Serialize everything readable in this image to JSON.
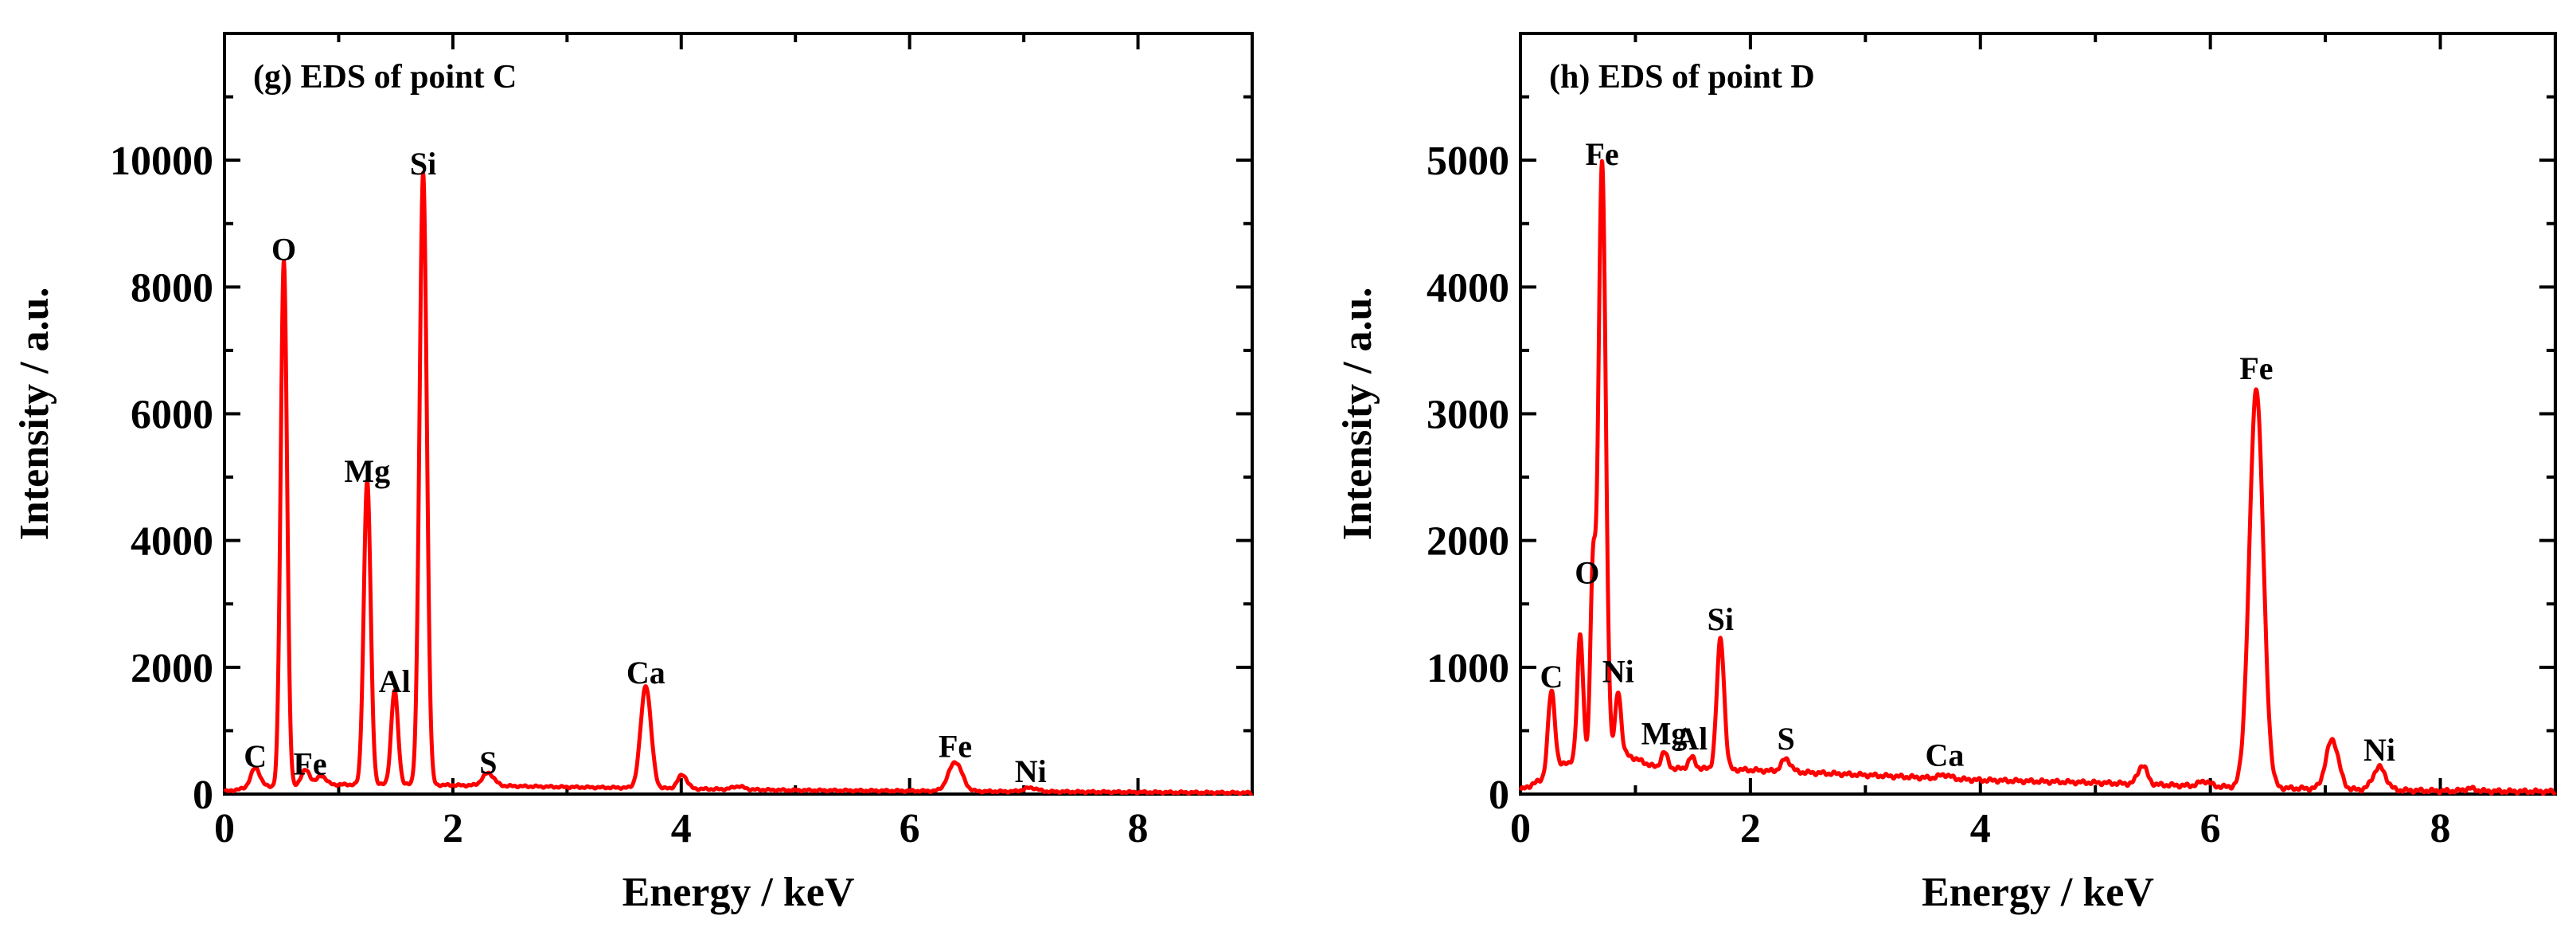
{
  "chart_data": [
    {
      "type": "line",
      "title": "(g) EDS of point C",
      "xlabel": "Energy / keV",
      "ylabel": "Intensity / a.u.",
      "xlim": [
        0,
        9
      ],
      "ylim": [
        0,
        12000
      ],
      "x_ticks": [
        0,
        2,
        4,
        6,
        8
      ],
      "y_ticks": [
        0,
        2000,
        4000,
        6000,
        8000,
        10000
      ],
      "line_color": "#ff0000",
      "grid": false,
      "series": [
        {
          "baseline": [
            [
              0,
              40
            ],
            [
              0.3,
              120
            ],
            [
              0.6,
              120
            ],
            [
              1.0,
              150
            ],
            [
              1.6,
              150
            ],
            [
              2.0,
              140
            ],
            [
              2.4,
              130
            ],
            [
              3.0,
              110
            ],
            [
              3.5,
              100
            ],
            [
              4.2,
              80
            ],
            [
              5.0,
              60
            ],
            [
              6.0,
              50
            ],
            [
              7.0,
              40
            ],
            [
              8.0,
              30
            ],
            [
              9.0,
              20
            ]
          ],
          "peaks": [
            {
              "x": 0.27,
              "y": 300,
              "w": 0.04
            },
            {
              "x": 0.52,
              "y": 8300,
              "w": 0.028
            },
            {
              "x": 0.71,
              "y": 250,
              "w": 0.04
            },
            {
              "x": 0.85,
              "y": 150,
              "w": 0.04
            },
            {
              "x": 1.25,
              "y": 4800,
              "w": 0.03
            },
            {
              "x": 1.49,
              "y": 1480,
              "w": 0.03
            },
            {
              "x": 1.74,
              "y": 9650,
              "w": 0.032
            },
            {
              "x": 2.31,
              "y": 200,
              "w": 0.05
            },
            {
              "x": 3.69,
              "y": 1620,
              "w": 0.045
            },
            {
              "x": 4.01,
              "y": 220,
              "w": 0.04
            },
            {
              "x": 4.5,
              "y": 50,
              "w": 0.05
            },
            {
              "x": 6.4,
              "y": 460,
              "w": 0.06
            },
            {
              "x": 7.06,
              "y": 60,
              "w": 0.06
            }
          ]
        }
      ],
      "annotations": [
        {
          "text": "C",
          "x": 0.27,
          "y": 300
        },
        {
          "text": "O",
          "x": 0.52,
          "y": 8300
        },
        {
          "text": "Fe",
          "x": 0.75,
          "y": 180
        },
        {
          "text": "Mg",
          "x": 1.25,
          "y": 4800
        },
        {
          "text": "Al",
          "x": 1.49,
          "y": 1480
        },
        {
          "text": "Si",
          "x": 1.74,
          "y": 9650
        },
        {
          "text": "S",
          "x": 2.31,
          "y": 200
        },
        {
          "text": "Ca",
          "x": 3.69,
          "y": 1620
        },
        {
          "text": "Fe",
          "x": 6.4,
          "y": 460
        },
        {
          "text": "Ni",
          "x": 7.06,
          "y": 60
        }
      ]
    },
    {
      "type": "line",
      "title": "(h) EDS of point D",
      "xlabel": "Energy / keV",
      "ylabel": "Intensity / a.u.",
      "xlim": [
        0,
        9
      ],
      "ylim": [
        0,
        6000
      ],
      "x_ticks": [
        0,
        2,
        4,
        6,
        8
      ],
      "y_ticks": [
        0,
        1000,
        2000,
        3000,
        4000,
        5000
      ],
      "line_color": "#ff0000",
      "grid": false,
      "series": [
        {
          "baseline": [
            [
              0,
              30
            ],
            [
              0.2,
              120
            ],
            [
              0.4,
              250
            ],
            [
              0.9,
              320
            ],
            [
              1.2,
              200
            ],
            [
              1.6,
              200
            ],
            [
              2.0,
              190
            ],
            [
              2.5,
              170
            ],
            [
              3.0,
              150
            ],
            [
              3.5,
              130
            ],
            [
              4.0,
              110
            ],
            [
              5.0,
              90
            ],
            [
              6.0,
              60
            ],
            [
              7.0,
              40
            ],
            [
              8.0,
              25
            ],
            [
              9.0,
              20
            ]
          ],
          "peaks": [
            {
              "x": 0.27,
              "y": 650,
              "w": 0.03
            },
            {
              "x": 0.52,
              "y": 1000,
              "w": 0.025
            },
            {
              "x": 0.63,
              "y": 1450,
              "w": 0.022
            },
            {
              "x": 0.71,
              "y": 4700,
              "w": 0.032
            },
            {
              "x": 0.85,
              "y": 500,
              "w": 0.025
            },
            {
              "x": 1.25,
              "y": 130,
              "w": 0.03
            },
            {
              "x": 1.49,
              "y": 90,
              "w": 0.03
            },
            {
              "x": 1.74,
              "y": 1030,
              "w": 0.032
            },
            {
              "x": 2.31,
              "y": 100,
              "w": 0.04
            },
            {
              "x": 3.69,
              "y": 30,
              "w": 0.05
            },
            {
              "x": 5.41,
              "y": 150,
              "w": 0.04
            },
            {
              "x": 5.95,
              "y": 40,
              "w": 0.05
            },
            {
              "x": 6.4,
              "y": 3150,
              "w": 0.06
            },
            {
              "x": 7.06,
              "y": 390,
              "w": 0.055
            },
            {
              "x": 7.47,
              "y": 180,
              "w": 0.055
            },
            {
              "x": 8.26,
              "y": 20,
              "w": 0.05
            }
          ]
        }
      ],
      "annotations": [
        {
          "text": "C",
          "x": 0.27,
          "y": 780
        },
        {
          "text": "O",
          "x": 0.58,
          "y": 1600
        },
        {
          "text": "Fe",
          "x": 0.71,
          "y": 4900
        },
        {
          "text": "Ni",
          "x": 0.85,
          "y": 820
        },
        {
          "text": "Mg",
          "x": 1.25,
          "y": 330
        },
        {
          "text": "Al",
          "x": 1.49,
          "y": 290
        },
        {
          "text": "Si",
          "x": 1.74,
          "y": 1230
        },
        {
          "text": "S",
          "x": 2.31,
          "y": 290
        },
        {
          "text": "Ca",
          "x": 3.69,
          "y": 160
        },
        {
          "text": "Fe",
          "x": 6.4,
          "y": 3210
        },
        {
          "text": "Ni",
          "x": 7.47,
          "y": 200
        }
      ]
    }
  ]
}
